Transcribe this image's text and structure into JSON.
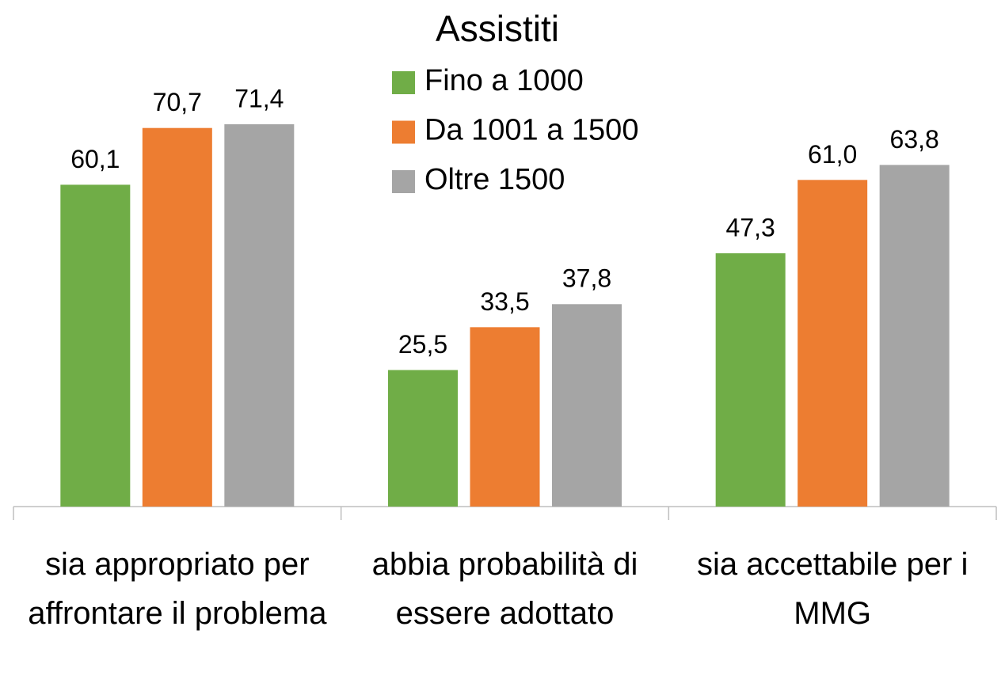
{
  "chart_data": {
    "type": "bar",
    "legend_title": "Assistiti",
    "categories": [
      "sia appropriato per affrontare il problema",
      "abbia probabilità di essere adottato",
      "sia accettabile per i MMG"
    ],
    "series": [
      {
        "name": "Fino a 1000",
        "color": "#70ad47",
        "values": [
          60.1,
          25.5,
          47.3
        ],
        "value_labels": [
          "60,1",
          "25,5",
          "47,3"
        ]
      },
      {
        "name": "Da 1001 a 1500",
        "color": "#ed7d31",
        "values": [
          70.7,
          33.5,
          61.0
        ],
        "value_labels": [
          "70,7",
          "33,5",
          "61,0"
        ]
      },
      {
        "name": "Oltre 1500",
        "color": "#a5a5a5",
        "values": [
          71.4,
          37.8,
          63.8
        ],
        "value_labels": [
          "71,4",
          "37,8",
          "63,8"
        ]
      }
    ],
    "ylim": [
      0,
      94.6
    ],
    "legend": "top"
  }
}
